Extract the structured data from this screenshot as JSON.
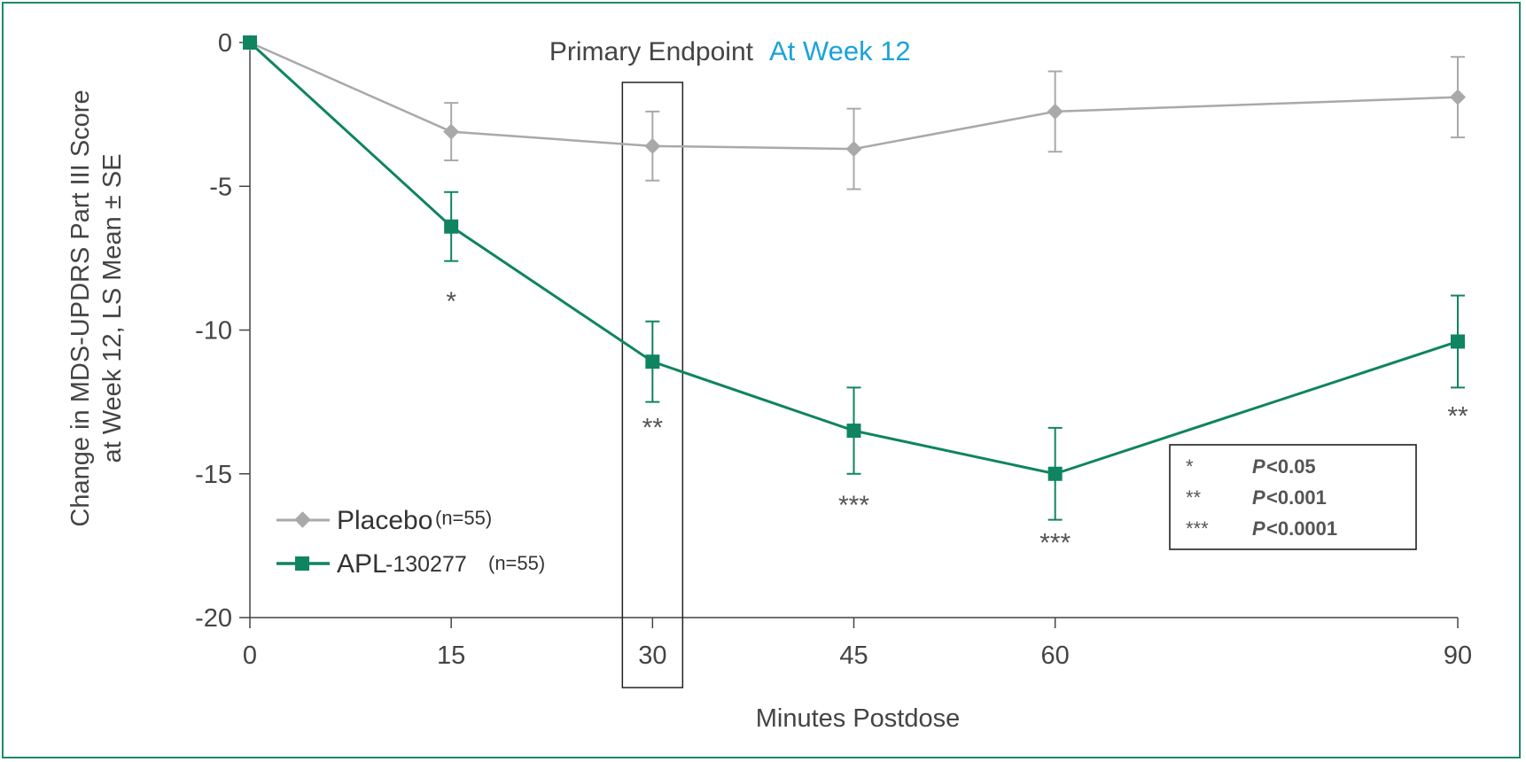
{
  "chart_data": {
    "type": "line",
    "title": "Primary Endpoint",
    "title_highlight": "At Week 12",
    "xlabel": "Minutes Postdose",
    "ylabel_line1": "Change in MDS-UPDRS Part III Score",
    "ylabel_line2": "at Week 12, LS Mean ± SE",
    "xticks": [
      0,
      15,
      30,
      45,
      60,
      90
    ],
    "yticks": [
      0,
      -5,
      -10,
      -15,
      -20
    ],
    "ylim": [
      -20,
      0
    ],
    "xlim": [
      0,
      90
    ],
    "highlighted_x": 30,
    "series": [
      {
        "name": "Placebo",
        "n_label": "(n=55)",
        "color": "#a9a9a9",
        "marker": "diamond",
        "x": [
          0,
          15,
          30,
          45,
          60,
          90
        ],
        "y": [
          0,
          -3.1,
          -3.6,
          -3.7,
          -2.4,
          -1.9
        ],
        "err": [
          0,
          1.0,
          1.2,
          1.4,
          1.4,
          1.4
        ]
      },
      {
        "name": "APL",
        "name_suffix": "-130277",
        "n_label": "(n=55)",
        "color": "#0f8460",
        "marker": "square",
        "x": [
          0,
          15,
          30,
          45,
          60,
          90
        ],
        "y": [
          0,
          -6.4,
          -11.1,
          -13.5,
          -15.0,
          -10.4
        ],
        "err": [
          0,
          1.2,
          1.4,
          1.5,
          1.6,
          1.6
        ]
      }
    ],
    "significance": [
      {
        "x": 15,
        "y": -9.3,
        "label": "*"
      },
      {
        "x": 30,
        "y": -13.7,
        "label": "**"
      },
      {
        "x": 45,
        "y": -16.4,
        "label": "***"
      },
      {
        "x": 60,
        "y": -17.7,
        "label": "***"
      },
      {
        "x": 90,
        "y": -13.3,
        "label": "**"
      }
    ],
    "significance_key": [
      {
        "stars": "*",
        "p": "P",
        "value": "<0.05"
      },
      {
        "stars": "**",
        "p": "P",
        "value": "<0.001"
      },
      {
        "stars": "***",
        "p": "P",
        "value": "<0.0001"
      }
    ],
    "legend_placement": "bottom-left",
    "grid": false
  },
  "colors": {
    "frame": "#1f8a64",
    "title_highlight": "#1aa3d9",
    "axis": "#444444"
  }
}
